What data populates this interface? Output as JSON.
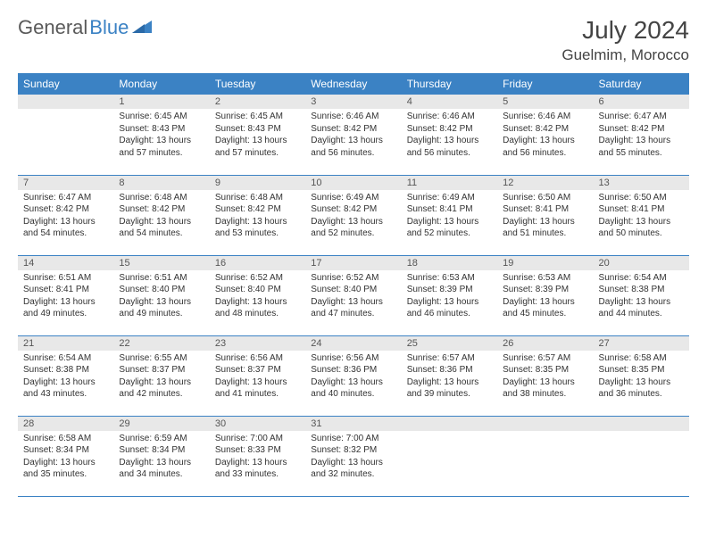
{
  "header": {
    "logo_general": "General",
    "logo_blue": "Blue",
    "month_title": "July 2024",
    "location": "Guelmim, Morocco"
  },
  "colors": {
    "header_bg": "#3b82c4",
    "header_text": "#ffffff",
    "daynum_bg": "#e8e8e8",
    "border": "#3b82c4",
    "text": "#333333",
    "logo_gray": "#5a5a5a"
  },
  "weekdays": [
    "Sunday",
    "Monday",
    "Tuesday",
    "Wednesday",
    "Thursday",
    "Friday",
    "Saturday"
  ],
  "cells": [
    {
      "day": "",
      "sunrise": "",
      "sunset": "",
      "daylight": ""
    },
    {
      "day": "1",
      "sunrise": "Sunrise: 6:45 AM",
      "sunset": "Sunset: 8:43 PM",
      "daylight": "Daylight: 13 hours and 57 minutes."
    },
    {
      "day": "2",
      "sunrise": "Sunrise: 6:45 AM",
      "sunset": "Sunset: 8:43 PM",
      "daylight": "Daylight: 13 hours and 57 minutes."
    },
    {
      "day": "3",
      "sunrise": "Sunrise: 6:46 AM",
      "sunset": "Sunset: 8:42 PM",
      "daylight": "Daylight: 13 hours and 56 minutes."
    },
    {
      "day": "4",
      "sunrise": "Sunrise: 6:46 AM",
      "sunset": "Sunset: 8:42 PM",
      "daylight": "Daylight: 13 hours and 56 minutes."
    },
    {
      "day": "5",
      "sunrise": "Sunrise: 6:46 AM",
      "sunset": "Sunset: 8:42 PM",
      "daylight": "Daylight: 13 hours and 56 minutes."
    },
    {
      "day": "6",
      "sunrise": "Sunrise: 6:47 AM",
      "sunset": "Sunset: 8:42 PM",
      "daylight": "Daylight: 13 hours and 55 minutes."
    },
    {
      "day": "7",
      "sunrise": "Sunrise: 6:47 AM",
      "sunset": "Sunset: 8:42 PM",
      "daylight": "Daylight: 13 hours and 54 minutes."
    },
    {
      "day": "8",
      "sunrise": "Sunrise: 6:48 AM",
      "sunset": "Sunset: 8:42 PM",
      "daylight": "Daylight: 13 hours and 54 minutes."
    },
    {
      "day": "9",
      "sunrise": "Sunrise: 6:48 AM",
      "sunset": "Sunset: 8:42 PM",
      "daylight": "Daylight: 13 hours and 53 minutes."
    },
    {
      "day": "10",
      "sunrise": "Sunrise: 6:49 AM",
      "sunset": "Sunset: 8:42 PM",
      "daylight": "Daylight: 13 hours and 52 minutes."
    },
    {
      "day": "11",
      "sunrise": "Sunrise: 6:49 AM",
      "sunset": "Sunset: 8:41 PM",
      "daylight": "Daylight: 13 hours and 52 minutes."
    },
    {
      "day": "12",
      "sunrise": "Sunrise: 6:50 AM",
      "sunset": "Sunset: 8:41 PM",
      "daylight": "Daylight: 13 hours and 51 minutes."
    },
    {
      "day": "13",
      "sunrise": "Sunrise: 6:50 AM",
      "sunset": "Sunset: 8:41 PM",
      "daylight": "Daylight: 13 hours and 50 minutes."
    },
    {
      "day": "14",
      "sunrise": "Sunrise: 6:51 AM",
      "sunset": "Sunset: 8:41 PM",
      "daylight": "Daylight: 13 hours and 49 minutes."
    },
    {
      "day": "15",
      "sunrise": "Sunrise: 6:51 AM",
      "sunset": "Sunset: 8:40 PM",
      "daylight": "Daylight: 13 hours and 49 minutes."
    },
    {
      "day": "16",
      "sunrise": "Sunrise: 6:52 AM",
      "sunset": "Sunset: 8:40 PM",
      "daylight": "Daylight: 13 hours and 48 minutes."
    },
    {
      "day": "17",
      "sunrise": "Sunrise: 6:52 AM",
      "sunset": "Sunset: 8:40 PM",
      "daylight": "Daylight: 13 hours and 47 minutes."
    },
    {
      "day": "18",
      "sunrise": "Sunrise: 6:53 AM",
      "sunset": "Sunset: 8:39 PM",
      "daylight": "Daylight: 13 hours and 46 minutes."
    },
    {
      "day": "19",
      "sunrise": "Sunrise: 6:53 AM",
      "sunset": "Sunset: 8:39 PM",
      "daylight": "Daylight: 13 hours and 45 minutes."
    },
    {
      "day": "20",
      "sunrise": "Sunrise: 6:54 AM",
      "sunset": "Sunset: 8:38 PM",
      "daylight": "Daylight: 13 hours and 44 minutes."
    },
    {
      "day": "21",
      "sunrise": "Sunrise: 6:54 AM",
      "sunset": "Sunset: 8:38 PM",
      "daylight": "Daylight: 13 hours and 43 minutes."
    },
    {
      "day": "22",
      "sunrise": "Sunrise: 6:55 AM",
      "sunset": "Sunset: 8:37 PM",
      "daylight": "Daylight: 13 hours and 42 minutes."
    },
    {
      "day": "23",
      "sunrise": "Sunrise: 6:56 AM",
      "sunset": "Sunset: 8:37 PM",
      "daylight": "Daylight: 13 hours and 41 minutes."
    },
    {
      "day": "24",
      "sunrise": "Sunrise: 6:56 AM",
      "sunset": "Sunset: 8:36 PM",
      "daylight": "Daylight: 13 hours and 40 minutes."
    },
    {
      "day": "25",
      "sunrise": "Sunrise: 6:57 AM",
      "sunset": "Sunset: 8:36 PM",
      "daylight": "Daylight: 13 hours and 39 minutes."
    },
    {
      "day": "26",
      "sunrise": "Sunrise: 6:57 AM",
      "sunset": "Sunset: 8:35 PM",
      "daylight": "Daylight: 13 hours and 38 minutes."
    },
    {
      "day": "27",
      "sunrise": "Sunrise: 6:58 AM",
      "sunset": "Sunset: 8:35 PM",
      "daylight": "Daylight: 13 hours and 36 minutes."
    },
    {
      "day": "28",
      "sunrise": "Sunrise: 6:58 AM",
      "sunset": "Sunset: 8:34 PM",
      "daylight": "Daylight: 13 hours and 35 minutes."
    },
    {
      "day": "29",
      "sunrise": "Sunrise: 6:59 AM",
      "sunset": "Sunset: 8:34 PM",
      "daylight": "Daylight: 13 hours and 34 minutes."
    },
    {
      "day": "30",
      "sunrise": "Sunrise: 7:00 AM",
      "sunset": "Sunset: 8:33 PM",
      "daylight": "Daylight: 13 hours and 33 minutes."
    },
    {
      "day": "31",
      "sunrise": "Sunrise: 7:00 AM",
      "sunset": "Sunset: 8:32 PM",
      "daylight": "Daylight: 13 hours and 32 minutes."
    },
    {
      "day": "",
      "sunrise": "",
      "sunset": "",
      "daylight": ""
    },
    {
      "day": "",
      "sunrise": "",
      "sunset": "",
      "daylight": ""
    },
    {
      "day": "",
      "sunrise": "",
      "sunset": "",
      "daylight": ""
    }
  ]
}
